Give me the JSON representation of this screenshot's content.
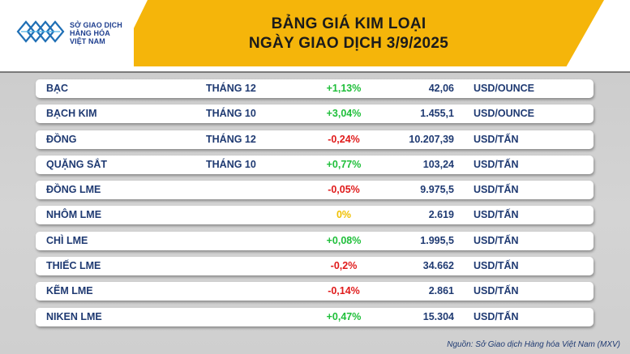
{
  "logo": {
    "line1": "SỞ GIAO DỊCH",
    "line2": "HÀNG HÓA",
    "line3": "VIỆT NAM"
  },
  "title": {
    "line1": "BẢNG GIÁ KIM LOẠI",
    "line2": "NGÀY GIAO DỊCH 3/9/2025"
  },
  "colors": {
    "up": "#1fbf3a",
    "down": "#e01b1b",
    "flat": "#f0c000",
    "accent": "#f5b50a"
  },
  "rows": [
    {
      "name": "BẠC",
      "term": "THÁNG 12",
      "change": "+1,13%",
      "dir": "up",
      "price": "42,06",
      "unit": "USD/OUNCE"
    },
    {
      "name": "BẠCH KIM",
      "term": "THÁNG 10",
      "change": "+3,04%",
      "dir": "up",
      "price": "1.455,1",
      "unit": "USD/OUNCE"
    },
    {
      "name": "ĐỒNG",
      "term": "THÁNG 12",
      "change": "-0,24%",
      "dir": "down",
      "price": "10.207,39",
      "unit": "USD/TẤN"
    },
    {
      "name": "QUẶNG SẮT",
      "term": "THÁNG 10",
      "change": "+0,77%",
      "dir": "up",
      "price": "103,24",
      "unit": "USD/TẤN"
    },
    {
      "name": "ĐỒNG LME",
      "term": "",
      "change": "-0,05%",
      "dir": "down",
      "price": "9.975,5",
      "unit": "USD/TẤN"
    },
    {
      "name": "NHÔM LME",
      "term": "",
      "change": "0%",
      "dir": "flat",
      "price": "2.619",
      "unit": "USD/TẤN"
    },
    {
      "name": "CHÌ LME",
      "term": "",
      "change": "+0,08%",
      "dir": "up",
      "price": "1.995,5",
      "unit": "USD/TẤN"
    },
    {
      "name": "THIẾC LME",
      "term": "",
      "change": "-0,2%",
      "dir": "down",
      "price": "34.662",
      "unit": "USD/TẤN"
    },
    {
      "name": "KẼM LME",
      "term": "",
      "change": "-0,14%",
      "dir": "down",
      "price": "2.861",
      "unit": "USD/TẤN"
    },
    {
      "name": "NIKEN LME",
      "term": "",
      "change": "+0,47%",
      "dir": "up",
      "price": "15.304",
      "unit": "USD/TẤN"
    }
  ],
  "source": "Nguồn: Sở Giao dịch Hàng hóa Việt Nam (MXV)"
}
